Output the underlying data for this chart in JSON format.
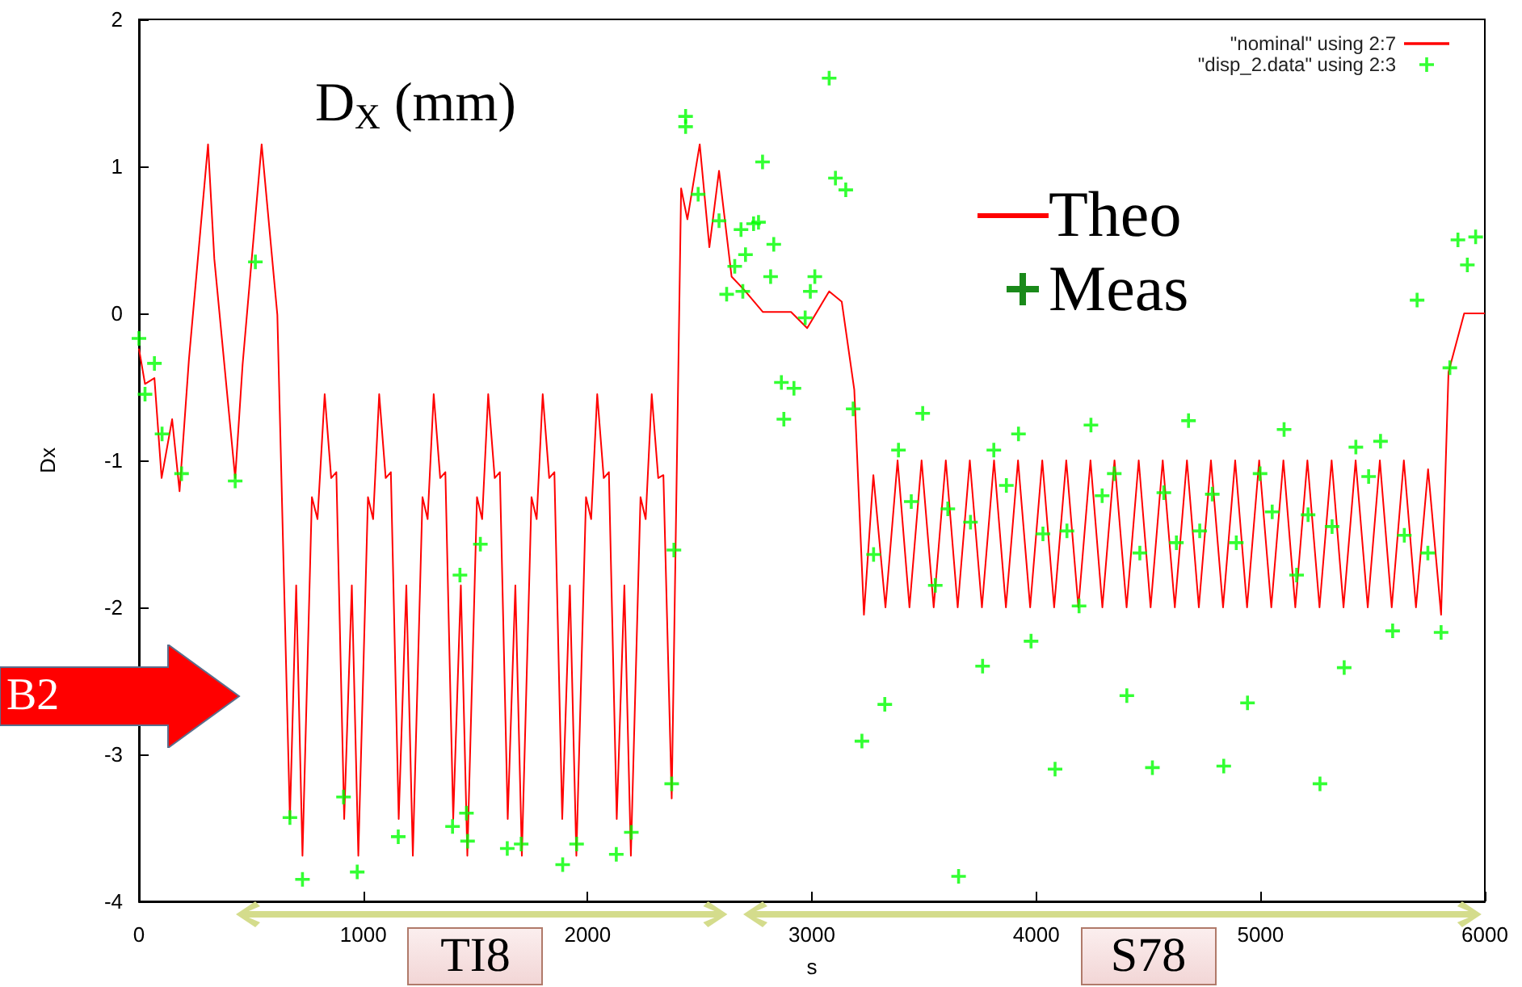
{
  "chart_data": {
    "type": "line",
    "title": "D$_{X}$ (mm)",
    "xlabel": "s",
    "ylabel": "Dx",
    "xlim": [
      0,
      6000
    ],
    "xticks": [
      0,
      1000,
      2000,
      3000,
      4000,
      5000,
      6000
    ],
    "ylim": [
      -4,
      2
    ],
    "yticks": [
      -4,
      -3,
      -2,
      -1,
      0,
      1,
      2
    ],
    "grid": false,
    "legend": "top right",
    "annotations": [
      "Theo",
      "Meas",
      "B2",
      "TI8",
      "S78"
    ],
    "series": [
      {
        "name": "\"nominal\" using 2:7",
        "marker": "none",
        "color": "#ff0000",
        "x": [
          0,
          27,
          69,
          101,
          148,
          181,
          223,
          308,
          336,
          429,
          462,
          547,
          617,
          673,
          701,
          729,
          771,
          796,
          828,
          857,
          880,
          915,
          949,
          978,
          1021,
          1044,
          1071,
          1100,
          1123,
          1158,
          1192,
          1221,
          1264,
          1287,
          1314,
          1343,
          1366,
          1401,
          1435,
          1464,
          1507,
          1530,
          1557,
          1586,
          1609,
          1644,
          1678,
          1707,
          1750,
          1773,
          1800,
          1829,
          1852,
          1887,
          1921,
          1950,
          1993,
          2016,
          2043,
          2072,
          2095,
          2130,
          2164,
          2193,
          2236,
          2259,
          2286,
          2315,
          2338,
          2375,
          2417,
          2445,
          2500,
          2543,
          2586,
          2642,
          2698,
          2781,
          2907,
          2979,
          3077,
          3133,
          3189,
          3232,
          3274,
          3328,
          3382,
          3435,
          3489,
          3543,
          3597,
          3650,
          3704,
          3758,
          3812,
          3865,
          3919,
          3973,
          4027,
          4080,
          4134,
          4188,
          4242,
          4295,
          4349,
          4403,
          4457,
          4510,
          4564,
          4618,
          4672,
          4725,
          4779,
          4833,
          4887,
          4940,
          4994,
          5048,
          5102,
          5155,
          5209,
          5263,
          5317,
          5370,
          5424,
          5478,
          5532,
          5585,
          5639,
          5693,
          5747,
          5805,
          5838,
          5908,
          6000
        ],
        "values": [
          -0.24,
          -0.48,
          -0.44,
          -1.12,
          -0.72,
          -1.21,
          -0.31,
          1.15,
          0.37,
          -1.12,
          -0.35,
          1.15,
          -0.01,
          -3.44,
          -1.85,
          -3.69,
          -1.25,
          -1.4,
          -0.55,
          -1.12,
          -1.08,
          -3.44,
          -1.85,
          -3.69,
          -1.25,
          -1.4,
          -0.55,
          -1.12,
          -1.08,
          -3.44,
          -1.85,
          -3.69,
          -1.25,
          -1.4,
          -0.55,
          -1.12,
          -1.08,
          -3.44,
          -1.85,
          -3.69,
          -1.25,
          -1.4,
          -0.55,
          -1.12,
          -1.08,
          -3.44,
          -1.85,
          -3.69,
          -1.25,
          -1.4,
          -0.55,
          -1.12,
          -1.08,
          -3.44,
          -1.85,
          -3.69,
          -1.25,
          -1.4,
          -0.55,
          -1.12,
          -1.08,
          -3.44,
          -1.85,
          -3.69,
          -1.25,
          -1.4,
          -0.55,
          -1.12,
          -1.1,
          -3.3,
          0.85,
          0.64,
          1.15,
          0.45,
          0.97,
          0.25,
          0.16,
          0.01,
          0.01,
          -0.1,
          0.15,
          0.08,
          -0.52,
          -2.05,
          -1.1,
          -2.0,
          -1.0,
          -2.0,
          -1.0,
          -2.0,
          -1.0,
          -2.0,
          -1.0,
          -2.0,
          -1.0,
          -2.0,
          -1.0,
          -2.0,
          -1.0,
          -2.0,
          -1.0,
          -2.0,
          -1.0,
          -2.0,
          -1.0,
          -2.0,
          -1.0,
          -2.0,
          -1.0,
          -2.0,
          -1.0,
          -2.0,
          -1.0,
          -2.0,
          -1.0,
          -2.0,
          -1.0,
          -2.0,
          -1.0,
          -2.0,
          -1.0,
          -2.0,
          -1.0,
          -2.0,
          -1.0,
          -2.0,
          -1.0,
          -2.0,
          -1.0,
          -2.0,
          -1.06,
          -2.05,
          -0.4,
          0,
          0
        ]
      },
      {
        "name": "\"disp_2.data\" using 2:3",
        "type": "scatter",
        "marker": "cross",
        "color": "#00ff00",
        "x": [
          0,
          27,
          69,
          103,
          190,
          429,
          519,
          673,
          729,
          912,
          973,
          1156,
          1398,
          1431,
          1460,
          1465,
          1522,
          1642,
          1704,
          1889,
          1951,
          2128,
          2195,
          2375,
          2385,
          2437,
          2437,
          2493,
          2586,
          2620,
          2656,
          2684,
          2692,
          2704,
          2740,
          2762,
          2780,
          2816,
          2830,
          2864,
          2875,
          2920,
          2970,
          2993,
          3013,
          3077,
          3105,
          3151,
          3184,
          3223,
          3275,
          3325,
          3386,
          3443,
          3494,
          3550,
          3606,
          3654,
          3707,
          3761,
          3811,
          3867,
          3921,
          3977,
          4030,
          4084,
          4137,
          4191,
          4244,
          4294,
          4348,
          4404,
          4462,
          4518,
          4569,
          4625,
          4679,
          4729,
          4785,
          4836,
          4892,
          4942,
          4998,
          5052,
          5105,
          5161,
          5212,
          5265,
          5319,
          5373,
          5425,
          5482,
          5535,
          5589,
          5641,
          5698,
          5746,
          5805,
          5844,
          5880,
          5922,
          5959
        ],
        "values": [
          -0.17,
          -0.55,
          -0.34,
          -0.82,
          -1.09,
          -1.14,
          0.35,
          -3.43,
          -3.85,
          -3.29,
          -3.8,
          -3.56,
          -3.49,
          -1.78,
          -3.4,
          -3.59,
          -1.57,
          -3.64,
          -3.61,
          -3.75,
          -3.61,
          -3.68,
          -3.53,
          -3.2,
          -1.61,
          1.34,
          1.27,
          0.81,
          0.63,
          0.13,
          0.32,
          0.57,
          0.15,
          0.4,
          0.61,
          0.62,
          1.03,
          0.25,
          0.47,
          -0.47,
          -0.72,
          -0.51,
          -0.03,
          0.15,
          0.25,
          1.6,
          0.92,
          0.84,
          -0.65,
          -2.91,
          -1.64,
          -2.66,
          -0.93,
          -1.28,
          -0.68,
          -1.85,
          -1.33,
          -3.83,
          -1.42,
          -2.4,
          -0.93,
          -1.17,
          -0.82,
          -2.23,
          -1.5,
          -3.1,
          -1.48,
          -1.99,
          -0.76,
          -1.24,
          -1.09,
          -2.6,
          -1.63,
          -3.09,
          -1.22,
          -1.56,
          -0.73,
          -1.48,
          -1.23,
          -3.08,
          -1.56,
          -2.65,
          -1.09,
          -1.35,
          -0.79,
          -1.78,
          -1.37,
          -3.2,
          -1.45,
          -2.41,
          -0.91,
          -1.11,
          -0.87,
          -2.16,
          -1.51,
          0.09,
          -1.63,
          -2.17,
          -0.37,
          0.5,
          0.33,
          0.52
        ]
      }
    ]
  }
}
